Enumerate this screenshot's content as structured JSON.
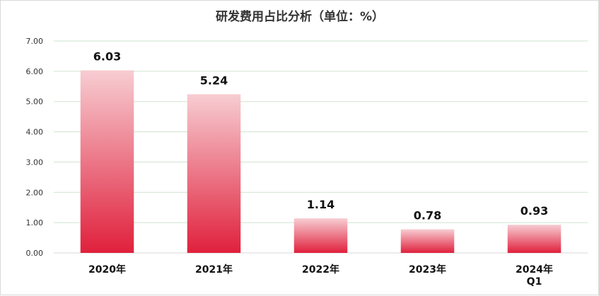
{
  "chart_data": {
    "type": "bar",
    "title": "研发费用占比分析（单位：%）",
    "categories": [
      "2020年",
      "2021年",
      "2022年",
      "2023年",
      "2024年\nQ1"
    ],
    "values": [
      6.03,
      5.24,
      1.14,
      0.78,
      0.93
    ],
    "data_labels": [
      "6.03",
      "5.24",
      "1.14",
      "0.78",
      "0.93"
    ],
    "yticks": [
      "0.00",
      "1.00",
      "2.00",
      "3.00",
      "4.00",
      "5.00",
      "6.00",
      "7.00"
    ],
    "xlabel": "",
    "ylabel": "",
    "ylim": [
      0,
      7
    ],
    "grid": true,
    "legend": "none",
    "colors": {
      "bar_top": "#f7cdd2",
      "bar_bottom": "#e0203c",
      "grid": "#cfe3cf",
      "axis": "#d9d9d9",
      "text": "#333333"
    }
  }
}
